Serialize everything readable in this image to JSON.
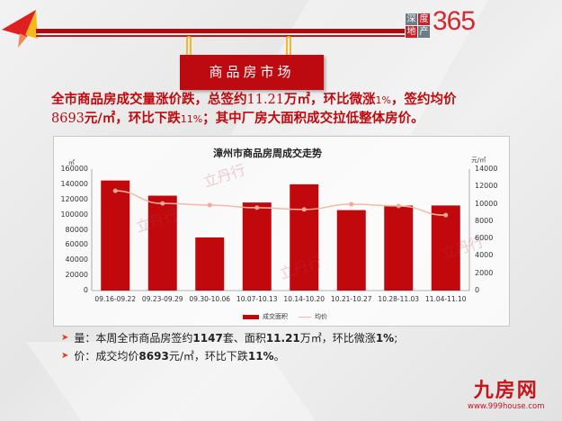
{
  "header": {
    "sign_title": "商品房市场",
    "brand_logo": {
      "cells": [
        "深",
        "度",
        "地",
        "产"
      ],
      "number": "365"
    }
  },
  "headline": {
    "line1_a": "全市商品房成交量涨价跌，总签约",
    "line1_b": "11.21",
    "line1_c": "万㎡，环比微涨",
    "line1_d": "1%",
    "line1_e": "，签约均价",
    "line2_a": "8693",
    "line2_b": "元/㎡，环比下跌",
    "line2_c": "11%",
    "line2_d": "；其中厂房大面积成交拉低整体房价。"
  },
  "chart_data": {
    "type": "bar",
    "title": "漳州市商品房周成交走势",
    "categories": [
      "09.16-09.22",
      "09.23-09.29",
      "09.30-10.06",
      "10.07-10.13",
      "10.14-10.20",
      "10.21-10.27",
      "10.28-11.03",
      "11.04-11.10"
    ],
    "series": [
      {
        "name": "成交面积",
        "kind": "bar",
        "axis": "left",
        "color": "#c0080d",
        "values": [
          145000,
          125000,
          70000,
          116000,
          140000,
          106000,
          112000,
          112100
        ]
      },
      {
        "name": "均价",
        "kind": "line",
        "axis": "right",
        "color": "#f3b9a4",
        "values": [
          11500,
          10050,
          9850,
          9550,
          9350,
          9950,
          9750,
          8693
        ]
      }
    ],
    "ylabel": "㎡",
    "ylabel_right": "元/㎡",
    "ylim": [
      0,
      160000
    ],
    "ylim_right": [
      0,
      14000
    ],
    "yticks": [
      "160000",
      "140000",
      "120000",
      "100000",
      "80000",
      "60000",
      "40000",
      "20000",
      "0"
    ],
    "yticks_right": [
      "14000",
      "12000",
      "10000",
      "8000",
      "6000",
      "4000",
      "2000",
      "0"
    ],
    "legend_position": "bottom",
    "grid": false
  },
  "bullets": [
    {
      "parts": [
        "量：本周全市商品房签约",
        "1147",
        "套、面积",
        "11.21",
        "万㎡，环比微涨",
        "1%",
        ";"
      ]
    },
    {
      "parts": [
        "价：成交均价",
        "8693",
        "元/㎡，环比下跌",
        "11%",
        "。"
      ]
    }
  ],
  "footer_logo": {
    "name": "九房网",
    "url": "www.999house.com"
  },
  "watermark": "立丹行"
}
